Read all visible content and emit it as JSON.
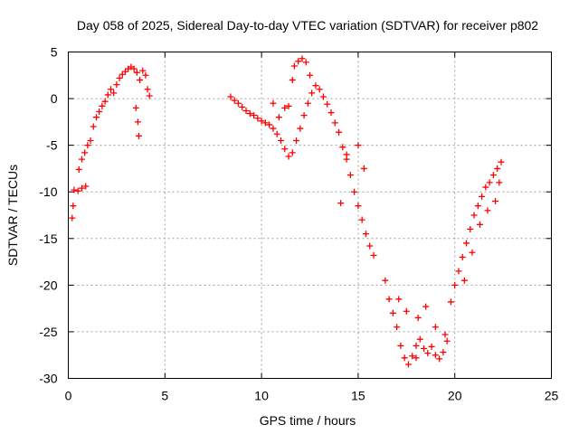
{
  "chart_data": {
    "type": "scatter",
    "title": "Day 058 of 2025, Sidereal Day-to-day VTEC variation (SDTVAR) for receiver p802",
    "xlabel": "GPS time / hours",
    "ylabel": "SDTVAR / TECUs",
    "xlim": [
      0,
      25
    ],
    "ylim": [
      -30,
      5
    ],
    "xticks": [
      0,
      5,
      10,
      15,
      20,
      25
    ],
    "yticks": [
      5,
      0,
      -5,
      -10,
      -15,
      -20,
      -25,
      -30
    ],
    "grid": true,
    "marker": "+",
    "color": "#ff0000",
    "series": [
      {
        "points": [
          [
            0.2,
            -12.8
          ],
          [
            0.25,
            -11.5
          ],
          [
            0.3,
            -9.8
          ],
          [
            0.5,
            -9.9
          ],
          [
            0.7,
            -9.6
          ],
          [
            0.9,
            -9.4
          ],
          [
            0.55,
            -7.6
          ],
          [
            0.7,
            -6.5
          ],
          [
            0.85,
            -5.8
          ],
          [
            1.0,
            -5.0
          ],
          [
            1.15,
            -4.5
          ],
          [
            1.3,
            -3.0
          ],
          [
            1.45,
            -2.0
          ],
          [
            1.6,
            -1.4
          ],
          [
            1.75,
            -0.8
          ],
          [
            1.9,
            -0.3
          ],
          [
            2.05,
            0.4
          ],
          [
            2.2,
            1.0
          ],
          [
            2.35,
            0.6
          ],
          [
            2.5,
            1.5
          ],
          [
            2.65,
            2.2
          ],
          [
            2.8,
            2.6
          ],
          [
            2.95,
            2.9
          ],
          [
            3.1,
            3.2
          ],
          [
            3.25,
            3.4
          ],
          [
            3.4,
            3.2
          ],
          [
            3.55,
            2.8
          ],
          [
            3.7,
            2.0
          ],
          [
            3.85,
            3.0
          ],
          [
            4.0,
            2.5
          ],
          [
            3.5,
            -1.0
          ],
          [
            3.6,
            -2.5
          ],
          [
            3.65,
            -4.0
          ],
          [
            4.1,
            1.0
          ],
          [
            4.2,
            0.3
          ],
          [
            8.4,
            0.2
          ],
          [
            8.6,
            -0.2
          ],
          [
            8.8,
            -0.5
          ],
          [
            9.0,
            -0.9
          ],
          [
            9.2,
            -1.3
          ],
          [
            9.4,
            -1.6
          ],
          [
            9.6,
            -1.8
          ],
          [
            9.8,
            -2.1
          ],
          [
            10.0,
            -2.4
          ],
          [
            10.2,
            -2.6
          ],
          [
            10.4,
            -2.8
          ],
          [
            10.6,
            -3.2
          ],
          [
            10.8,
            -3.8
          ],
          [
            11.0,
            -4.5
          ],
          [
            11.2,
            -5.4
          ],
          [
            11.4,
            -6.2
          ],
          [
            11.6,
            -5.8
          ],
          [
            11.8,
            -4.5
          ],
          [
            12.0,
            -3.2
          ],
          [
            12.2,
            -1.8
          ],
          [
            12.4,
            -0.5
          ],
          [
            12.6,
            0.6
          ],
          [
            12.8,
            1.4
          ],
          [
            13.0,
            1.0
          ],
          [
            13.2,
            0.2
          ],
          [
            13.4,
            -0.6
          ],
          [
            13.6,
            -1.5
          ],
          [
            13.8,
            -2.6
          ],
          [
            14.0,
            -3.6
          ],
          [
            14.2,
            -5.2
          ],
          [
            14.4,
            -6.5
          ],
          [
            14.6,
            -8.2
          ],
          [
            14.8,
            -10.0
          ],
          [
            15.0,
            -11.5
          ],
          [
            15.2,
            -13.0
          ],
          [
            15.4,
            -14.5
          ],
          [
            15.6,
            -15.8
          ],
          [
            15.8,
            -16.8
          ],
          [
            11.4,
            -0.8
          ],
          [
            11.6,
            2.0
          ],
          [
            11.7,
            3.5
          ],
          [
            11.9,
            4.0
          ],
          [
            12.1,
            4.3
          ],
          [
            12.3,
            3.9
          ],
          [
            12.5,
            2.5
          ],
          [
            10.6,
            -0.5
          ],
          [
            10.9,
            -2.0
          ],
          [
            11.2,
            -1.0
          ],
          [
            14.1,
            -11.2
          ],
          [
            15.0,
            -5.0
          ],
          [
            15.3,
            -7.5
          ],
          [
            14.4,
            -6.0
          ],
          [
            16.4,
            -19.5
          ],
          [
            16.6,
            -21.5
          ],
          [
            16.8,
            -23.0
          ],
          [
            17.0,
            -24.5
          ],
          [
            17.2,
            -26.5
          ],
          [
            17.4,
            -27.8
          ],
          [
            17.6,
            -28.5
          ],
          [
            17.8,
            -27.6
          ],
          [
            18.0,
            -26.5
          ],
          [
            18.2,
            -25.8
          ],
          [
            18.4,
            -26.8
          ],
          [
            18.6,
            -27.3
          ],
          [
            18.8,
            -26.6
          ],
          [
            19.0,
            -27.5
          ],
          [
            19.2,
            -27.9
          ],
          [
            19.4,
            -27.2
          ],
          [
            19.6,
            -26.0
          ],
          [
            17.1,
            -21.5
          ],
          [
            17.5,
            -22.8
          ],
          [
            18.1,
            -23.5
          ],
          [
            18.5,
            -22.3
          ],
          [
            19.0,
            -24.5
          ],
          [
            19.5,
            -25.3
          ],
          [
            18.0,
            -27.8
          ],
          [
            19.8,
            -21.8
          ],
          [
            20.0,
            -20.0
          ],
          [
            20.2,
            -18.5
          ],
          [
            20.4,
            -17.0
          ],
          [
            20.6,
            -15.5
          ],
          [
            20.8,
            -14.0
          ],
          [
            21.0,
            -12.5
          ],
          [
            21.2,
            -11.5
          ],
          [
            21.4,
            -10.5
          ],
          [
            21.6,
            -9.5
          ],
          [
            21.8,
            -9.0
          ],
          [
            22.0,
            -8.2
          ],
          [
            22.2,
            -7.5
          ],
          [
            22.4,
            -6.8
          ],
          [
            20.5,
            -19.5
          ],
          [
            20.9,
            -16.5
          ],
          [
            21.3,
            -13.5
          ],
          [
            21.7,
            -12.0
          ],
          [
            22.1,
            -11.0
          ],
          [
            22.3,
            -9.0
          ]
        ]
      }
    ]
  }
}
